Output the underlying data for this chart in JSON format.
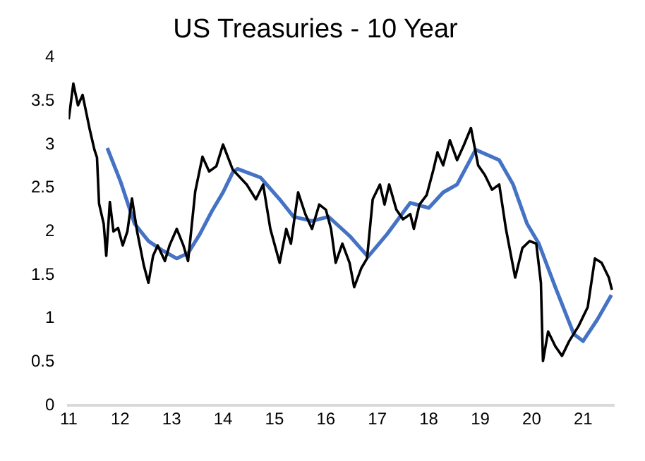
{
  "chart_data": {
    "type": "line",
    "title": "US Treasuries - 10 Year",
    "xlim": [
      2011,
      2021.6
    ],
    "ylim": [
      0,
      4
    ],
    "xticks": [
      {
        "value": 2011,
        "label": "11"
      },
      {
        "value": 2012,
        "label": "12"
      },
      {
        "value": 2013,
        "label": "13"
      },
      {
        "value": 2014,
        "label": "14"
      },
      {
        "value": 2015,
        "label": "15"
      },
      {
        "value": 2016,
        "label": "16"
      },
      {
        "value": 2017,
        "label": "17"
      },
      {
        "value": 2018,
        "label": "18"
      },
      {
        "value": 2019,
        "label": "19"
      },
      {
        "value": 2020,
        "label": "20"
      },
      {
        "value": 2021,
        "label": "21"
      }
    ],
    "yticks": [
      0,
      0.5,
      1,
      1.5,
      2,
      2.5,
      3,
      3.5,
      4
    ],
    "grid": false,
    "legend": false,
    "marker": "none",
    "line_style": "solid",
    "series": [
      {
        "color": "#000000",
        "x": [
          2011.0,
          2011.09,
          2011.18,
          2011.27,
          2011.41,
          2011.5,
          2011.55,
          2011.59,
          2011.68,
          2011.73,
          2011.8,
          2011.87,
          2011.96,
          2012.05,
          2012.14,
          2012.23,
          2012.33,
          2012.46,
          2012.55,
          2012.64,
          2012.73,
          2012.87,
          2012.96,
          2013.1,
          2013.23,
          2013.32,
          2013.46,
          2013.6,
          2013.73,
          2013.87,
          2014.0,
          2014.19,
          2014.46,
          2014.64,
          2014.78,
          2014.92,
          2015.1,
          2015.23,
          2015.32,
          2015.46,
          2015.6,
          2015.73,
          2015.87,
          2016.0,
          2016.1,
          2016.19,
          2016.32,
          2016.46,
          2016.55,
          2016.69,
          2016.8,
          2016.91,
          2017.05,
          2017.14,
          2017.23,
          2017.37,
          2017.5,
          2017.64,
          2017.71,
          2017.82,
          2017.96,
          2018.09,
          2018.17,
          2018.28,
          2018.41,
          2018.55,
          2018.68,
          2018.82,
          2018.96,
          2019.09,
          2019.23,
          2019.37,
          2019.5,
          2019.68,
          2019.82,
          2019.96,
          2020.09,
          2020.18,
          2020.22,
          2020.32,
          2020.46,
          2020.59,
          2020.73,
          2020.91,
          2021.09,
          2021.23,
          2021.36,
          2021.5,
          2021.56
        ],
        "values": [
          3.29,
          3.7,
          3.45,
          3.57,
          3.17,
          2.94,
          2.85,
          2.32,
          2.09,
          1.72,
          2.34,
          2.0,
          2.04,
          1.84,
          2.0,
          2.38,
          2.0,
          1.61,
          1.41,
          1.72,
          1.84,
          1.66,
          1.84,
          2.03,
          1.84,
          1.66,
          2.46,
          2.86,
          2.69,
          2.75,
          3.0,
          2.71,
          2.54,
          2.37,
          2.54,
          2.03,
          1.64,
          2.03,
          1.86,
          2.45,
          2.2,
          2.03,
          2.31,
          2.25,
          2.03,
          1.64,
          1.86,
          1.64,
          1.36,
          1.58,
          1.69,
          2.37,
          2.54,
          2.31,
          2.54,
          2.25,
          2.14,
          2.2,
          2.03,
          2.31,
          2.42,
          2.71,
          2.91,
          2.76,
          3.05,
          2.82,
          2.99,
          3.19,
          2.76,
          2.65,
          2.48,
          2.54,
          2.03,
          1.47,
          1.81,
          1.89,
          1.86,
          1.41,
          0.51,
          0.85,
          0.68,
          0.57,
          0.74,
          0.91,
          1.13,
          1.69,
          1.64,
          1.47,
          1.33
        ]
      },
      {
        "color": "#4472c4",
        "x": [
          2011.75,
          2012.01,
          2012.28,
          2012.55,
          2012.83,
          2013.1,
          2013.32,
          2013.55,
          2013.78,
          2014.0,
          2014.19,
          2014.28,
          2014.73,
          2015.1,
          2015.37,
          2015.73,
          2016.05,
          2016.46,
          2016.82,
          2017.19,
          2017.64,
          2018.0,
          2018.28,
          2018.55,
          2018.91,
          2019.37,
          2019.64,
          2019.91,
          2020.14,
          2020.46,
          2020.82,
          2021.0,
          2021.28,
          2021.55
        ],
        "values": [
          2.96,
          2.57,
          2.09,
          1.89,
          1.78,
          1.69,
          1.75,
          1.97,
          2.23,
          2.45,
          2.68,
          2.72,
          2.62,
          2.37,
          2.17,
          2.12,
          2.17,
          1.95,
          1.71,
          1.97,
          2.33,
          2.27,
          2.45,
          2.54,
          2.94,
          2.82,
          2.54,
          2.09,
          1.86,
          1.36,
          0.82,
          0.74,
          0.99,
          1.27
        ]
      }
    ]
  }
}
